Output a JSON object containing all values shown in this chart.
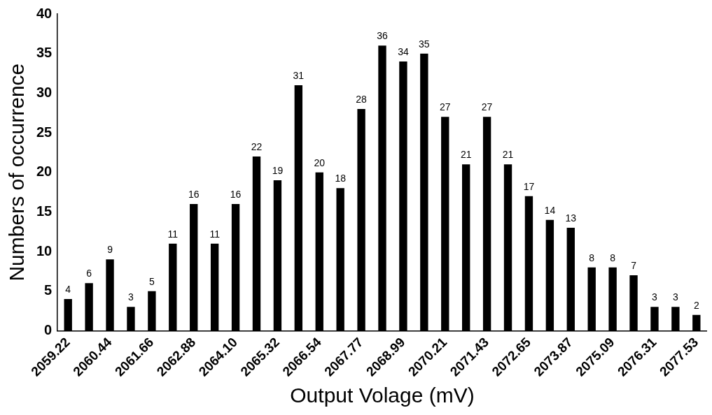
{
  "chart_data": {
    "type": "bar",
    "xlabel": "Output Volage (mV)",
    "ylabel": "Numbers of occurrence",
    "categories": [
      "2059.22",
      null,
      "2060.44",
      null,
      "2061.66",
      null,
      "2062.88",
      null,
      "2064.10",
      null,
      "2065.32",
      null,
      "2066.54",
      null,
      "2067.77",
      null,
      "2068.99",
      null,
      "2070.21",
      null,
      "2071.43",
      null,
      "2072.65",
      null,
      "2073.87",
      null,
      "2075.09",
      null,
      "2076.31",
      null,
      "2077.53"
    ],
    "values": [
      4,
      6,
      9,
      3,
      5,
      11,
      16,
      11,
      16,
      22,
      19,
      31,
      20,
      18,
      28,
      36,
      34,
      35,
      27,
      21,
      27,
      21,
      17,
      14,
      13,
      8,
      8,
      7,
      3,
      3,
      2
    ],
    "color": "#000000",
    "ylim": [
      0,
      40
    ],
    "yticks": [
      0,
      5,
      10,
      15,
      20,
      25,
      30,
      35,
      40
    ],
    "grid": false,
    "legend": false,
    "data_labels": true
  }
}
